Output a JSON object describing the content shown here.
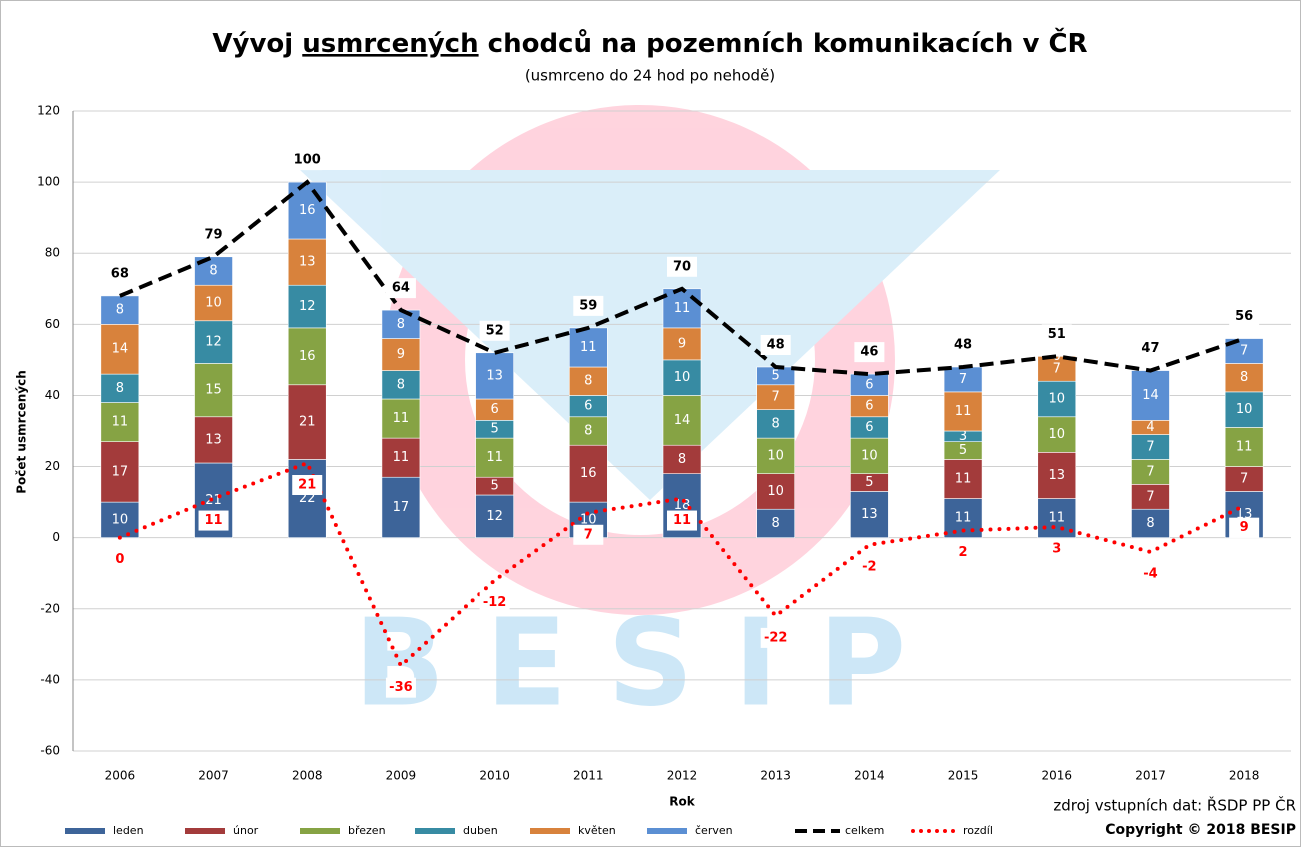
{
  "chart_data": {
    "type": "bar",
    "stacked": true,
    "title": [
      "Vývoj",
      "usmrcených",
      "chodců na pozemních komunikacích v ČR"
    ],
    "subtitle": "(usmrceno do 24 hod po nehodě)",
    "watermark": "BESIP",
    "y_label": "Počet usmrcených",
    "x_label": "Rok",
    "source": "zdroj vstupních dat: ŘSDP PP ČR",
    "copyright": "Copyright © 2018 BESIP",
    "categories": [
      "2006",
      "2007",
      "2008",
      "2009",
      "2010",
      "2011",
      "2012",
      "2013",
      "2014",
      "2015",
      "2016",
      "2017",
      "2018"
    ],
    "ylim": [
      -60,
      120
    ],
    "yticks": [
      -60,
      -40,
      -20,
      0,
      20,
      40,
      60,
      80,
      100,
      120
    ],
    "grid": true,
    "legend": "bottom",
    "series": [
      {
        "name": "leden",
        "kind": "bar",
        "color": "#3d6499",
        "values": [
          10,
          21,
          22,
          17,
          12,
          10,
          18,
          8,
          13,
          11,
          11,
          8,
          13
        ]
      },
      {
        "name": "únor",
        "kind": "bar",
        "color": "#a33b3b",
        "values": [
          17,
          13,
          21,
          11,
          5,
          16,
          8,
          10,
          5,
          11,
          13,
          7,
          7
        ]
      },
      {
        "name": "březen",
        "kind": "bar",
        "color": "#86a344",
        "values": [
          11,
          15,
          16,
          11,
          11,
          8,
          14,
          10,
          10,
          5,
          10,
          7,
          11
        ]
      },
      {
        "name": "duben",
        "kind": "bar",
        "color": "#378ba3",
        "values": [
          8,
          12,
          12,
          8,
          5,
          6,
          10,
          8,
          6,
          3,
          10,
          7,
          10
        ]
      },
      {
        "name": "květen",
        "kind": "bar",
        "color": "#d8823c",
        "values": [
          14,
          10,
          13,
          9,
          6,
          8,
          9,
          7,
          6,
          11,
          7,
          4,
          8
        ]
      },
      {
        "name": "červen",
        "kind": "bar",
        "color": "#5b8fd3",
        "values": [
          8,
          8,
          16,
          8,
          13,
          11,
          11,
          5,
          6,
          7,
          0,
          14,
          7
        ]
      },
      {
        "name": "celkem",
        "kind": "line",
        "style": "dashed",
        "color": "#000000",
        "values": [
          68,
          79,
          100,
          64,
          52,
          59,
          70,
          48,
          46,
          48,
          51,
          47,
          56
        ]
      },
      {
        "name": "rozdíl",
        "kind": "line",
        "style": "dotted",
        "color": "#ff0000",
        "values": [
          0,
          11,
          21,
          -36,
          -12,
          7,
          11,
          -22,
          -2,
          2,
          3,
          -4,
          9
        ]
      }
    ]
  }
}
